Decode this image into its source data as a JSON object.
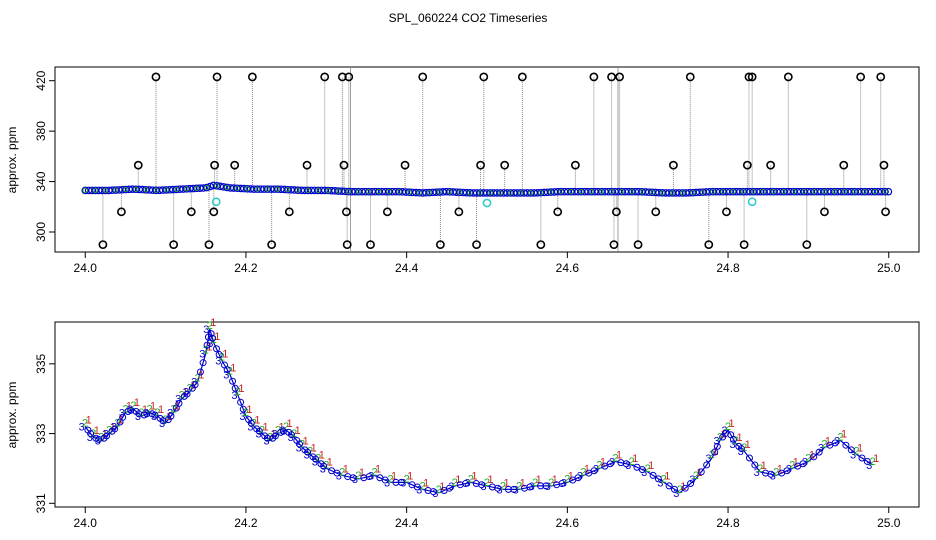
{
  "chart_data": [
    {
      "type": "scatter",
      "title": "SPL_060224  CO2 Timeseries",
      "ylabel": "approx. ppm",
      "xlim": [
        24.0,
        25.0
      ],
      "ylim": [
        290,
        425
      ],
      "x_ticks": [
        "24.0",
        "24.2",
        "24.4",
        "24.6",
        "24.8",
        "25.0"
      ],
      "y_ticks": [
        "300",
        "340",
        "380",
        "420"
      ],
      "series": [
        {
          "color": "#0000cc",
          "x": [
            24.0,
            24.03,
            24.06,
            24.09,
            24.12,
            24.15,
            24.16,
            24.18,
            24.21,
            24.24,
            24.27,
            24.3,
            24.33,
            24.36,
            24.39,
            24.42,
            24.45,
            24.48,
            24.5,
            24.53,
            24.56,
            24.59,
            24.62,
            24.66,
            24.69,
            24.72,
            24.75,
            24.78,
            24.81,
            24.84,
            24.87,
            24.9,
            24.93,
            24.96,
            24.99
          ],
          "y": [
            333,
            333,
            334,
            333,
            334,
            335,
            337,
            335,
            334,
            334,
            333,
            333,
            332,
            332,
            332,
            331,
            332,
            331,
            331,
            331,
            331,
            332,
            332,
            332,
            332,
            331,
            331,
            332,
            332,
            332,
            332,
            332,
            332,
            332,
            332
          ]
        },
        {
          "color": "#000000",
          "x": [
            24.022,
            24.045,
            24.066,
            24.088,
            24.11,
            24.132,
            24.154,
            24.16,
            24.161,
            24.164,
            24.186,
            24.208,
            24.232,
            24.254,
            24.276,
            24.298,
            24.32,
            24.322,
            24.325,
            24.326,
            24.328,
            24.355,
            24.376,
            24.398,
            24.42,
            24.442,
            24.465,
            24.487,
            24.492,
            24.496,
            24.522,
            24.544,
            24.567,
            24.588,
            24.61,
            24.633,
            24.655,
            24.658,
            24.661,
            24.665,
            24.688,
            24.71,
            24.732,
            24.753,
            24.776,
            24.798,
            24.82,
            24.824,
            24.826,
            24.83,
            24.853,
            24.875,
            24.898,
            24.92,
            24.944,
            24.965,
            24.99,
            24.994,
            24.996
          ],
          "y": [
            290,
            316,
            353,
            423,
            290,
            316,
            290,
            316,
            353,
            423,
            353,
            423,
            290,
            316,
            353,
            423,
            423,
            353,
            316,
            290,
            423,
            290,
            316,
            353,
            423,
            290,
            316,
            290,
            353,
            423,
            353,
            423,
            290,
            316,
            353,
            423,
            423,
            290,
            316,
            423,
            290,
            316,
            353,
            423,
            290,
            316,
            290,
            353,
            423,
            423,
            353,
            423,
            290,
            316,
            353,
            423,
            423,
            353,
            316
          ]
        },
        {
          "color": "#33cccc",
          "x": [
            24.163,
            24.5,
            24.83
          ],
          "y": [
            324,
            323,
            324
          ]
        }
      ]
    },
    {
      "type": "line",
      "ylabel": "approx. ppm",
      "xlim": [
        24.0,
        25.0
      ],
      "ylim": [
        331,
        336.2
      ],
      "x_ticks": [
        "24.0",
        "24.2",
        "24.4",
        "24.6",
        "24.8",
        "25.0"
      ],
      "y_ticks": [
        "331",
        "333",
        "335"
      ],
      "series": [
        {
          "label": "3",
          "color": "#0000cc",
          "x": [
            24.0,
            24.01,
            24.02,
            24.03,
            24.04,
            24.05,
            24.06,
            24.07,
            24.08,
            24.09,
            24.1,
            24.11,
            24.12,
            24.13,
            24.14,
            24.15,
            24.155,
            24.16,
            24.17,
            24.18,
            24.19,
            24.2,
            24.21,
            24.22,
            24.23,
            24.24,
            24.25,
            24.26,
            24.27,
            24.28,
            24.29,
            24.3,
            24.32,
            24.34,
            24.36,
            24.38,
            24.4,
            24.42,
            24.44,
            24.46,
            24.48,
            24.5,
            24.52,
            24.54,
            24.56,
            24.58,
            24.6,
            24.62,
            24.64,
            24.66,
            24.68,
            24.7,
            24.72,
            24.74,
            24.76,
            24.78,
            24.79,
            24.8,
            24.81,
            24.82,
            24.84,
            24.86,
            24.88,
            24.9,
            24.92,
            24.94,
            24.96,
            24.98
          ],
          "y": [
            333.2,
            332.9,
            332.8,
            333.0,
            333.2,
            333.6,
            333.7,
            333.5,
            333.6,
            333.5,
            333.3,
            333.6,
            334.0,
            334.2,
            334.5,
            335.3,
            336.0,
            335.6,
            335.1,
            334.7,
            334.1,
            333.5,
            333.2,
            333.0,
            332.8,
            333.0,
            333.1,
            332.9,
            332.6,
            332.4,
            332.2,
            332.0,
            331.8,
            331.7,
            331.8,
            331.6,
            331.6,
            331.4,
            331.3,
            331.5,
            331.6,
            331.5,
            331.4,
            331.4,
            331.5,
            331.5,
            331.6,
            331.8,
            332.0,
            332.2,
            332.1,
            331.9,
            331.6,
            331.3,
            331.7,
            332.3,
            332.8,
            333.1,
            332.7,
            332.5,
            331.9,
            331.8,
            332.0,
            332.2,
            332.6,
            332.8,
            332.4,
            332.1
          ]
        }
      ]
    }
  ]
}
